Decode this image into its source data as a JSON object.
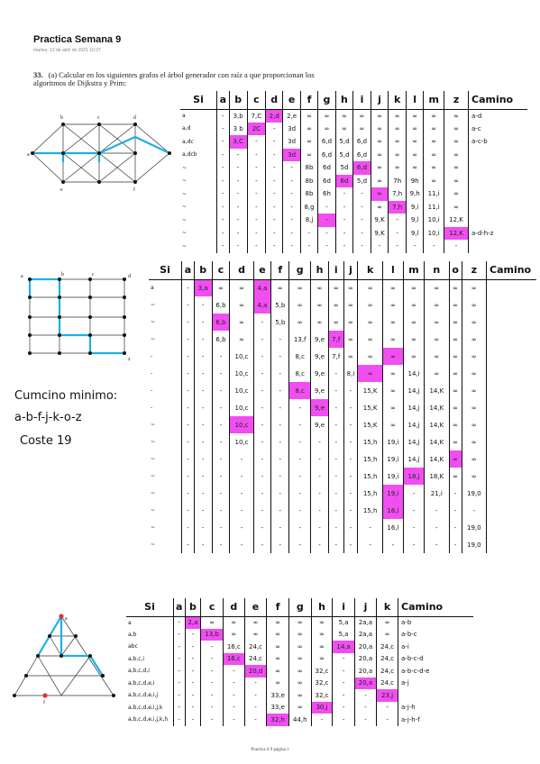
{
  "header": {
    "title": "Practica Semana 9",
    "date": "martes, 13 de abril de 2021     10:27"
  },
  "problem": {
    "number": "33.",
    "text": "(a) Calcular en los siguientes grafos el árbol generador con raíz a que proporcionan los algoritmos de Dijkstra y Prim:"
  },
  "graph1": {
    "vertices": [
      "a",
      "b",
      "c",
      "d",
      "e",
      "f",
      "g",
      "h",
      "i",
      "j",
      "k",
      "l",
      "m",
      "n",
      "o"
    ]
  },
  "table1": {
    "headers": [
      "Si",
      "a",
      "b",
      "c",
      "d",
      "e",
      "f",
      "g",
      "h",
      "i",
      "j",
      "k",
      "l",
      "m",
      "z",
      "Camino"
    ],
    "rows": [
      [
        "a",
        "-",
        "3,b",
        "7,C",
        "2,d",
        "2,e",
        "∞",
        "∞",
        "∞",
        "∞",
        "∞",
        "∞",
        "∞",
        "∞",
        "∞",
        "a-d"
      ],
      [
        "a,d",
        "-",
        "3 b",
        "2C",
        "-",
        "3d",
        "∞",
        "∞",
        "∞",
        "∞",
        "∞",
        "∞",
        "∞",
        "∞",
        "∞",
        "a-c"
      ],
      [
        "a,dc",
        "-",
        "3,C",
        "-",
        "-",
        "3d",
        "∞",
        "6,d",
        "5,d",
        "6,d",
        "∞",
        "∞",
        "∞",
        "∞",
        "∞",
        "a-c-b"
      ],
      [
        "a,dcb",
        "-",
        "-",
        "-",
        "-",
        "3d",
        "∞",
        "6,d",
        "5,d",
        "6,d",
        "∞",
        "∞",
        "∞",
        "∞",
        "∞",
        ""
      ],
      [
        "~",
        "-",
        "-",
        "-",
        "-",
        "-",
        "8b",
        "6d",
        "5d",
        "6,d",
        "∞",
        "∞",
        "∞",
        "∞",
        "∞",
        ""
      ],
      [
        "~",
        "-",
        "-",
        "-",
        "-",
        "-",
        "8b",
        "6d",
        "6d",
        "5,d",
        "∞",
        "7h",
        "9h",
        "∞",
        "∞",
        ""
      ],
      [
        "~",
        "-",
        "-",
        "-",
        "-",
        "-",
        "8b",
        "6h",
        "-",
        "-",
        "∞",
        "7,h",
        "9,h",
        "11,i",
        "∞",
        ""
      ],
      [
        "~",
        "-",
        "-",
        "-",
        "-",
        "-",
        "8,g",
        "-",
        "-",
        "-",
        "∞",
        "7,h",
        "9,i",
        "11,i",
        "∞",
        ""
      ],
      [
        "~",
        "-",
        "-",
        "-",
        "-",
        "-",
        "8,j",
        "-",
        "-",
        "-",
        "9,K",
        "-",
        "9,l",
        "10,i",
        "12,K",
        ""
      ],
      [
        "~",
        "-",
        "-",
        "-",
        "-",
        "-",
        "-",
        "-",
        "-",
        "-",
        "9,K",
        "-",
        "9,l",
        "10,i",
        "12,K",
        "a-d-h-z"
      ],
      [
        "~",
        "-",
        "-",
        "-",
        "-",
        "-",
        "-",
        "-",
        "-",
        "-",
        "-",
        "-",
        "-",
        "-",
        "-",
        ""
      ]
    ]
  },
  "graph2": {
    "vertices": [
      "a",
      "b",
      "c",
      "d",
      "e",
      "f",
      "g",
      "h",
      "i",
      "j",
      "k",
      "l",
      "m",
      "n",
      "o",
      "z"
    ]
  },
  "table2": {
    "headers": [
      "Si",
      "a",
      "b",
      "c",
      "d",
      "e",
      "f",
      "g",
      "h",
      "i",
      "j",
      "k",
      "l",
      "m",
      "n",
      "o",
      "z",
      "Camino"
    ],
    "rows": [
      [
        "a",
        "-",
        "3,a",
        "∞",
        "∞",
        "4,a",
        "∞",
        "∞",
        "∞",
        "∞",
        "∞",
        "∞",
        "∞",
        "∞",
        "∞",
        "∞",
        "∞",
        ""
      ],
      [
        "~",
        "-",
        "-",
        "6,b",
        "∞",
        "4,a",
        "5,b",
        "∞",
        "∞",
        "∞",
        "∞",
        "∞",
        "∞",
        "∞",
        "∞",
        "∞",
        "∞",
        ""
      ],
      [
        "~",
        "-",
        "-",
        "6,b",
        "∞",
        "-",
        "5,b",
        "∞",
        "∞",
        "∞",
        "∞",
        "∞",
        "∞",
        "∞",
        "∞",
        "∞",
        "∞",
        ""
      ],
      [
        "~",
        "-",
        "-",
        "6,b",
        "∞",
        "-",
        "-",
        "13,f",
        "9,e",
        "7,f",
        "∞",
        "∞",
        "∞",
        "∞",
        "∞",
        "∞",
        "∞",
        ""
      ],
      [
        "-",
        "-",
        "-",
        "-",
        "10,c",
        "-",
        "-",
        "8,c",
        "9,e",
        "7,f",
        "∞",
        "∞",
        "∞",
        "∞",
        "∞",
        "∞",
        "∞",
        ""
      ],
      [
        "-",
        "-",
        "-",
        "-",
        "10,c",
        "-",
        "-",
        "8,c",
        "9,e",
        "-",
        "8,i",
        "∞",
        "∞",
        "14,i",
        "∞",
        "∞",
        "∞",
        ""
      ],
      [
        "-",
        "-",
        "-",
        "-",
        "10,c",
        "-",
        "-",
        "8,c",
        "9,e",
        "-",
        "-",
        "15,K",
        "∞",
        "14,j",
        "14,K",
        "∞",
        "∞",
        ""
      ],
      [
        "-",
        "-",
        "-",
        "-",
        "10,c",
        "-",
        "-",
        "-",
        "9,e",
        "-",
        "-",
        "15,K",
        "∞",
        "14,j",
        "14,K",
        "∞",
        "∞",
        ""
      ],
      [
        "~",
        "-",
        "-",
        "-",
        "10,c",
        "-",
        "-",
        "-",
        "9,e",
        "-",
        "-",
        "15,K",
        "∞",
        "14,j",
        "14,K",
        "∞",
        "∞",
        ""
      ],
      [
        "~",
        "-",
        "-",
        "-",
        "10,c",
        "-",
        "-",
        "-",
        "-",
        "-",
        "-",
        "15,h",
        "19,i",
        "14,j",
        "14,K",
        "∞",
        "∞",
        ""
      ],
      [
        "~",
        "-",
        "-",
        "-",
        "-",
        "-",
        "-",
        "-",
        "-",
        "-",
        "-",
        "15,h",
        "19,i",
        "14,j",
        "14,K",
        "∞",
        "∞",
        ""
      ],
      [
        "~",
        "-",
        "-",
        "-",
        "-",
        "-",
        "-",
        "-",
        "-",
        "-",
        "-",
        "15,h",
        "19,i",
        "18,j",
        "18,K",
        "∞",
        "∞",
        ""
      ],
      [
        "~",
        "-",
        "-",
        "-",
        "-",
        "-",
        "-",
        "-",
        "-",
        "-",
        "-",
        "15,h",
        "19,i",
        "-",
        "21,i",
        "-",
        "19,0",
        ""
      ],
      [
        "~",
        "-",
        "-",
        "-",
        "-",
        "-",
        "-",
        "-",
        "-",
        "-",
        "-",
        "15,h",
        "16,l",
        "-",
        "-",
        "-",
        "-",
        ""
      ],
      [
        "~",
        "-",
        "-",
        "-",
        "-",
        "-",
        "-",
        "-",
        "-",
        "-",
        "-",
        "-",
        "16,l",
        "-",
        "-",
        "-",
        "19,0",
        ""
      ],
      [
        "~",
        "-",
        "-",
        "-",
        "-",
        "-",
        "-",
        "-",
        "-",
        "-",
        "-",
        "-",
        "-",
        "-",
        "-",
        "-",
        "19,0",
        ""
      ]
    ]
  },
  "notes": {
    "line1": "Cumcino minimo:",
    "line2": "a-b-f-j-k-o-z",
    "line3": "Coste 19"
  },
  "graph3": {
    "vertices": [
      "a",
      "b",
      "c",
      "d",
      "e",
      "f",
      "g",
      "h",
      "i",
      "j",
      "k"
    ]
  },
  "table3": {
    "headers": [
      "Si",
      "a",
      "b",
      "c",
      "d",
      "e",
      "f",
      "g",
      "h",
      "i",
      "j",
      "k",
      "Camino"
    ],
    "rows": [
      [
        "a",
        "-",
        "2,a",
        "∞",
        "∞",
        "∞",
        "∞",
        "∞",
        "∞",
        "5,a",
        "2a,a",
        "∞",
        "a-b"
      ],
      [
        "a,b",
        "-",
        "-",
        "13,b",
        "∞",
        "∞",
        "∞",
        "∞",
        "∞",
        "5,a",
        "2a,a",
        "∞",
        "a-b-c"
      ],
      [
        "abc",
        "-",
        "-",
        "-",
        "16,c",
        "24,c",
        "∞",
        "∞",
        "∞",
        "14,a",
        "20,a",
        "24,c",
        "a-i"
      ],
      [
        "a,b,c,i",
        "-",
        "-",
        "-",
        "16,c",
        "24,c",
        "∞",
        "∞",
        "∞",
        "-",
        "20,a",
        "24,c",
        "a-b-c-d"
      ],
      [
        "a,b,c,d,i",
        "-",
        "-",
        "-",
        "-",
        "20,d",
        "∞",
        "∞",
        "32,c",
        "-",
        "20,a",
        "24,c",
        "a-b-c-d-e"
      ],
      [
        "a,b,c,d,e,i",
        "-",
        "-",
        "-",
        "-",
        "-",
        "∞",
        "∞",
        "32,c",
        "-",
        "20,a",
        "24,c",
        "a-j"
      ],
      [
        "a,b,c,d,e,i,j",
        "-",
        "-",
        "-",
        "-",
        "-",
        "33,e",
        "∞",
        "32,c",
        "-",
        "-",
        "23,j",
        ""
      ],
      [
        "a,b,c,d,e,i,j,k",
        "-",
        "-",
        "-",
        "-",
        "-",
        "33,e",
        "∞",
        "30,j",
        "-",
        "-",
        "-",
        "a-j-h"
      ],
      [
        "a,b,c,d,e,i,j,k,h",
        "-",
        "-",
        "-",
        "-",
        "-",
        "32,h",
        "44,h",
        "-",
        "-",
        "-",
        "-",
        "a-j-h-f"
      ]
    ]
  },
  "footer": "Practica S 9 página 1"
}
